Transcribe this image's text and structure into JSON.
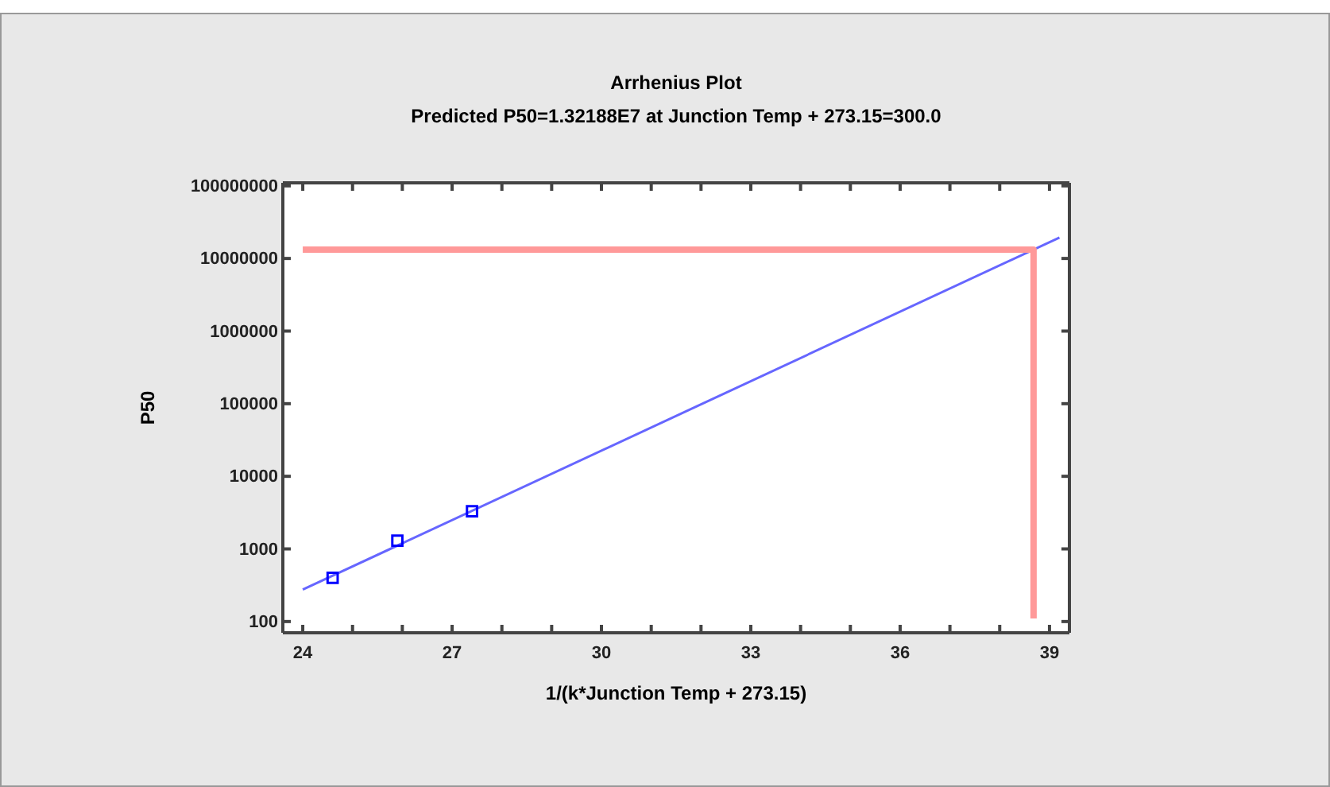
{
  "chart_data": {
    "type": "scatter",
    "title": "Arrhenius Plot",
    "subtitle": "Predicted P50=1.32188E7 at Junction Temp + 273.15=300.0",
    "xlabel": "1/(k*Junction Temp + 273.15)",
    "ylabel": "P50",
    "log": "y",
    "xlim": [
      23.6,
      39.4
    ],
    "ylim": [
      70,
      110000000
    ],
    "xticks": [
      24,
      {
        "value": 25,
        "label": null
      },
      {
        "value": 26,
        "label": null
      },
      27,
      {
        "value": 28,
        "label": null
      },
      {
        "value": 29,
        "label": null
      },
      30,
      {
        "value": 31,
        "label": null
      },
      {
        "value": 32,
        "label": null
      },
      33,
      {
        "value": 34,
        "label": null
      },
      {
        "value": 35,
        "label": null
      },
      36,
      {
        "value": 37,
        "label": null
      },
      {
        "value": 38,
        "label": null
      },
      39
    ],
    "yticks": [
      100,
      1000,
      10000,
      100000,
      1000000,
      10000000,
      100000000
    ],
    "series": [
      {
        "marker": "square",
        "color": "#0000ff",
        "x": [
          24.6,
          25.9,
          27.4
        ],
        "values": [
          400,
          1300,
          3300
        ]
      },
      {
        "type": "line",
        "color": "#6666ff",
        "x": [
          24,
          39.2
        ],
        "values": [
          275,
          19400000
        ]
      },
      {
        "type": "line",
        "color": "#ff9999",
        "x": [
          24,
          38.68,
          38.68
        ],
        "values": [
          13218800,
          13218800,
          110
        ]
      }
    ]
  }
}
